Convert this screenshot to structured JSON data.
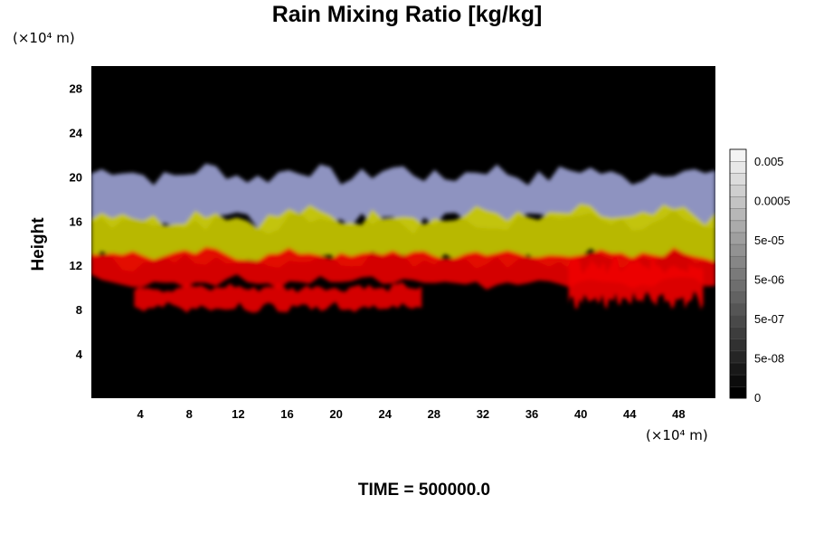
{
  "chart_data": {
    "type": "heatmap",
    "title": "Rain Mixing Ratio [kg/kg]",
    "ylabel": "Height",
    "x_unit": "(×10⁴ m)",
    "y_unit": "(×10⁴ m)",
    "xlim": [
      0,
      51
    ],
    "ylim": [
      0,
      30
    ],
    "x_ticks": [
      4,
      8,
      12,
      16,
      20,
      24,
      28,
      32,
      36,
      40,
      44,
      48
    ],
    "y_ticks": [
      4,
      8,
      12,
      16,
      20,
      24,
      28
    ],
    "colorbar": {
      "tick_labels": [
        "0.005",
        "0.0005",
        "5e-05",
        "5e-06",
        "5e-07",
        "5e-08",
        "0"
      ],
      "levels": 21,
      "colors": [
        "#000000",
        "#f4f4f4"
      ]
    },
    "bands": [
      {
        "name": "red layer",
        "y_bottom": 10.5,
        "y_top": 13.0,
        "color": "#e60000"
      },
      {
        "name": "yellow layer",
        "y_bottom": 12.5,
        "y_top": 16.5,
        "color": "#c8c800"
      },
      {
        "name": "blue-gray layer",
        "y_bottom": 16.0,
        "y_top": 20.3,
        "color": "#9aa0d0"
      },
      {
        "name": "lower red patch",
        "x_start": 3.5,
        "x_end": 27,
        "y_bottom": 8.2,
        "y_top": 10.0,
        "color": "#e60000"
      },
      {
        "name": "red cell",
        "x_start": 39,
        "x_end": 50,
        "y_bottom": 8.8,
        "y_top": 12.0,
        "color": "#ee0000"
      }
    ],
    "plot_background": "#000000",
    "grid": false
  },
  "footer": {
    "time_label": "TIME = 500000.0"
  }
}
